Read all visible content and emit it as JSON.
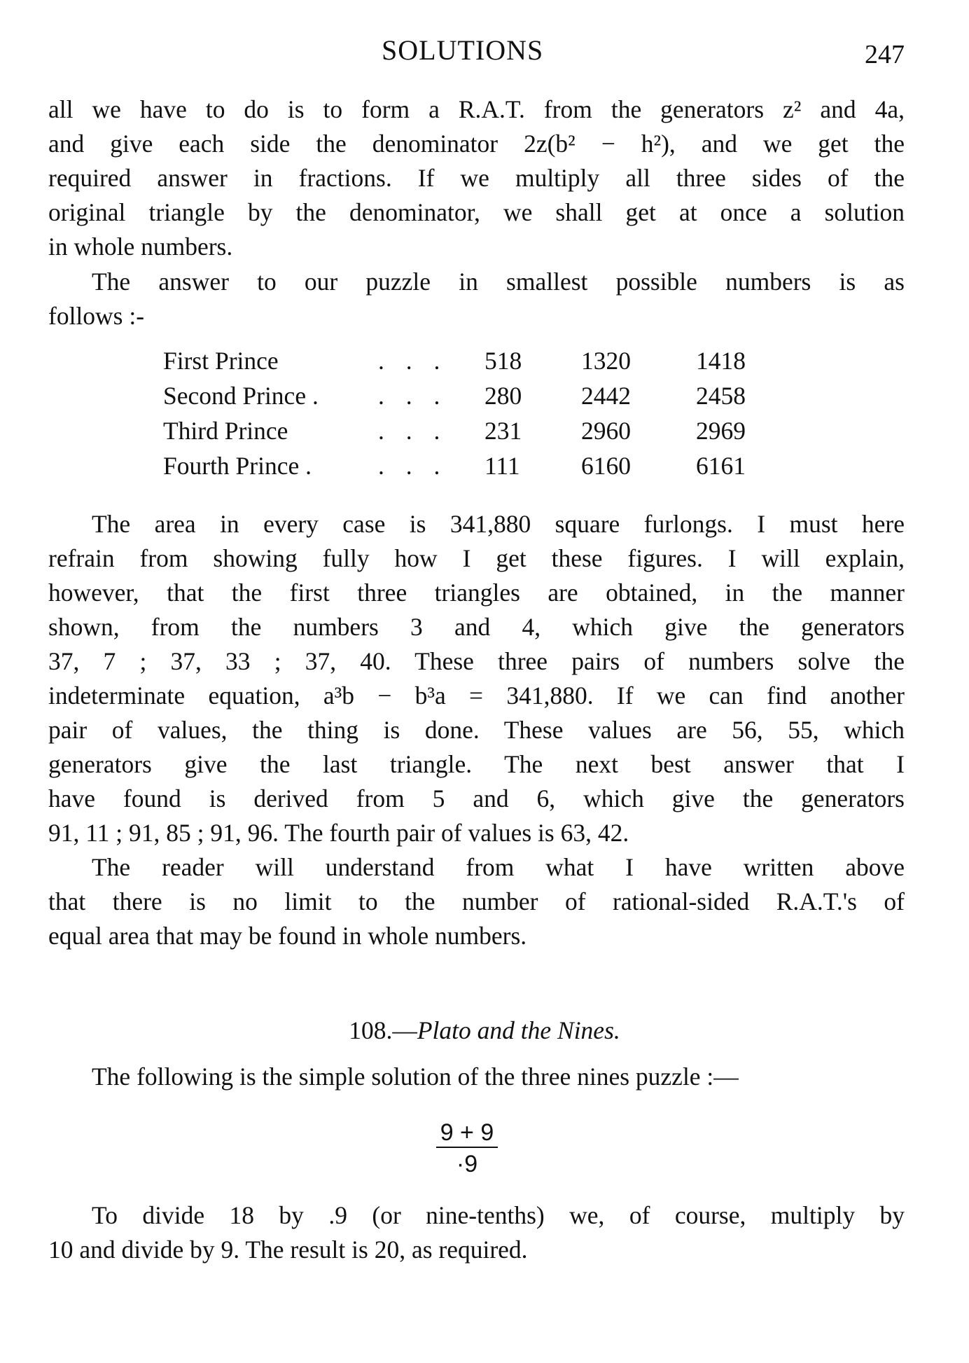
{
  "header": {
    "running_title": "SOLUTIONS",
    "page_number": "247"
  },
  "paragraph1": [
    "all we have to do is to form a R.A.T. from the generators z² and 4a,",
    "and give each side the denominator 2z(b² − h²), and we get the",
    "required answer in fractions.  If we multiply all three sides of the",
    "original triangle by the denominator, we shall get at once a solution",
    "in whole numbers."
  ],
  "paragraph2": [
    "The answer to our puzzle in smallest possible numbers is as",
    "follows :-"
  ],
  "table": {
    "rows": [
      {
        "label": "First Prince",
        "dots": ". . .",
        "values": [
          "518",
          "1320",
          "1418"
        ]
      },
      {
        "label": "Second Prince .",
        "dots": ". . .",
        "values": [
          "280",
          "2442",
          "2458"
        ]
      },
      {
        "label": "Third Prince",
        "dots": ". . .",
        "values": [
          "231",
          "2960",
          "2969"
        ]
      },
      {
        "label": "Fourth Prince .",
        "dots": ". . .",
        "values": [
          "111",
          "6160",
          "6161"
        ]
      }
    ]
  },
  "paragraph3": [
    "The area in every case is 341,880 square furlongs.  I must here",
    "refrain from showing fully how I get these figures.  I will explain,",
    "however, that the first three triangles are obtained, in the manner",
    "shown, from the numbers 3 and 4, which give the generators",
    "37, 7 ;  37, 33 ;  37, 40.  These three pairs of numbers solve the",
    "indeterminate equation, a³b − b³a = 341,880.  If we can find another",
    "pair of values, the thing is done.  These values are 56, 55, which",
    "generators give the last triangle.  The next best answer that I",
    "have found is derived from 5 and 6, which give the generators",
    "91, 11 ;  91, 85 ;  91, 96.  The fourth pair of values is 63, 42."
  ],
  "paragraph4": [
    "The reader will understand from what I have written above",
    "that there is no limit to the number of rational-sided R.A.T.'s of",
    "equal area that may be found in whole numbers."
  ],
  "section": {
    "number": "108.—",
    "title": "Plato and the Nines."
  },
  "paragraph5": [
    "The following is the simple solution of the three nines puzzle :—"
  ],
  "fraction": {
    "numerator": "9 + 9",
    "denominator": "·9"
  },
  "paragraph6": [
    "To divide 18 by .9 (or nine-tenths) we, of course, multiply by",
    "10 and divide by 9.  The result is 20, as required."
  ]
}
